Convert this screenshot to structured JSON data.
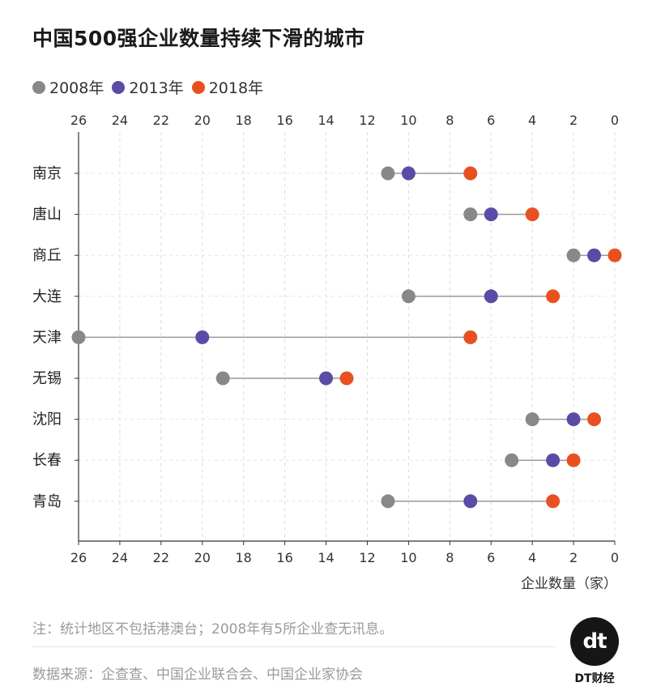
{
  "title": "中国500强企业数量持续下滑的城市",
  "legend": [
    {
      "label": "2008年",
      "color": "#888888"
    },
    {
      "label": "2013年",
      "color": "#5b4ba6"
    },
    {
      "label": "2018年",
      "color": "#e8511f"
    }
  ],
  "chart_data": {
    "type": "dot_plot",
    "title": "中国500强企业数量持续下滑的城市",
    "xlabel": "企业数量（家）",
    "x_axis_reversed": true,
    "xlim": [
      0,
      26
    ],
    "xticks": [
      26,
      24,
      22,
      20,
      18,
      16,
      14,
      12,
      10,
      8,
      6,
      4,
      2,
      0
    ],
    "grid": true,
    "legend_position": "top-left",
    "categories": [
      "南京",
      "唐山",
      "商丘",
      "大连",
      "天津",
      "无锡",
      "沈阳",
      "长春",
      "青岛"
    ],
    "series": [
      {
        "name": "2008年",
        "color": "#888888",
        "values": [
          11,
          7,
          2,
          10,
          26,
          19,
          4,
          5,
          11
        ]
      },
      {
        "name": "2013年",
        "color": "#5b4ba6",
        "values": [
          10,
          6,
          1,
          6,
          20,
          14,
          2,
          3,
          7
        ]
      },
      {
        "name": "2018年",
        "color": "#e8511f",
        "values": [
          7,
          4,
          0,
          3,
          7,
          13,
          1,
          2,
          3
        ]
      }
    ]
  },
  "xlabel": "企业数量（家）",
  "note": "注：统计地区不包括港澳台；2008年有5所企业查无讯息。",
  "source": "数据来源：企查查、中国企业联合会、中国企业家协会",
  "logo": {
    "mark": "dt",
    "text": "DT财经"
  }
}
